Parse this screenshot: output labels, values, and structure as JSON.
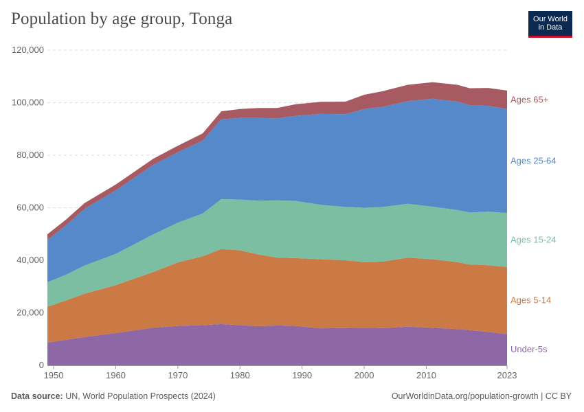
{
  "header": {
    "title": "Population by age group, Tonga",
    "logo_line1": "Our World",
    "logo_line2": "in Data"
  },
  "footer": {
    "source_label": "Data source:",
    "source_text": "UN, World Population Prospects (2024)",
    "url": "OurWorldinData.org/population-growth | CC BY"
  },
  "chart_data": {
    "type": "area",
    "stacked": true,
    "title": "Population by age group, Tonga",
    "xlabel": "",
    "ylabel": "",
    "xlim": [
      1949,
      2023
    ],
    "ylim": [
      0,
      120000
    ],
    "x_ticks": [
      {
        "value": 1950,
        "label": "1950"
      },
      {
        "value": 1960,
        "label": "1960"
      },
      {
        "value": 1970,
        "label": "1970"
      },
      {
        "value": 1980,
        "label": "1980"
      },
      {
        "value": 1990,
        "label": "1990"
      },
      {
        "value": 2000,
        "label": "2000"
      },
      {
        "value": 2010,
        "label": "2010"
      },
      {
        "value": 2023,
        "label": "2023"
      }
    ],
    "y_ticks": [
      {
        "value": 0,
        "label": "0"
      },
      {
        "value": 20000,
        "label": "20,000"
      },
      {
        "value": 40000,
        "label": "40,000"
      },
      {
        "value": 60000,
        "label": "60,000"
      },
      {
        "value": 80000,
        "label": "80,000"
      },
      {
        "value": 100000,
        "label": "100,000"
      },
      {
        "value": 120000,
        "label": "120,000"
      }
    ],
    "x": [
      1949,
      1952,
      1955,
      1960,
      1966,
      1970,
      1974,
      1977,
      1980,
      1983,
      1986,
      1989,
      1993,
      1997,
      2000,
      2003,
      2007,
      2011,
      2015,
      2017,
      2020,
      2023
    ],
    "series": [
      {
        "name": "Under-5s",
        "label": "Under-5s",
        "color": "#8e67a6",
        "values": [
          8700,
          9700,
          10800,
          12300,
          14300,
          15000,
          15300,
          15700,
          15300,
          14900,
          15200,
          15000,
          14100,
          14200,
          14300,
          14200,
          14700,
          14300,
          13800,
          13400,
          12700,
          11900
        ]
      },
      {
        "name": "Ages 5-14",
        "label": "Ages 5-14",
        "color": "#cc7a45",
        "values": [
          13600,
          15000,
          16500,
          18200,
          21200,
          24200,
          26200,
          28600,
          28500,
          27300,
          25800,
          25800,
          26300,
          25800,
          25000,
          25300,
          26300,
          26100,
          25500,
          25000,
          25400,
          25500
        ]
      },
      {
        "name": "Ages 15-24",
        "label": "Ages 15-24",
        "color": "#7bbea1",
        "values": [
          9300,
          9800,
          10700,
          11900,
          14300,
          15100,
          16300,
          19000,
          19300,
          20500,
          21800,
          21800,
          20700,
          20300,
          20700,
          20800,
          20500,
          20000,
          19800,
          19800,
          20400,
          20600
        ]
      },
      {
        "name": "Ages 25-64",
        "label": "Ages 25-64",
        "color": "#5689c9",
        "values": [
          16100,
          18800,
          21600,
          24200,
          26500,
          26800,
          27800,
          30400,
          31100,
          31500,
          31200,
          32400,
          34600,
          35300,
          37600,
          38100,
          39100,
          41100,
          41300,
          40800,
          40300,
          39600
        ]
      },
      {
        "name": "Ages 65+",
        "label": "Ages 65+",
        "color": "#a85a63",
        "values": [
          2200,
          2200,
          2200,
          2200,
          2300,
          2500,
          2700,
          3000,
          3400,
          3800,
          4000,
          4400,
          4600,
          4800,
          5400,
          6000,
          6200,
          6300,
          6400,
          6500,
          6800,
          7000
        ]
      }
    ]
  }
}
